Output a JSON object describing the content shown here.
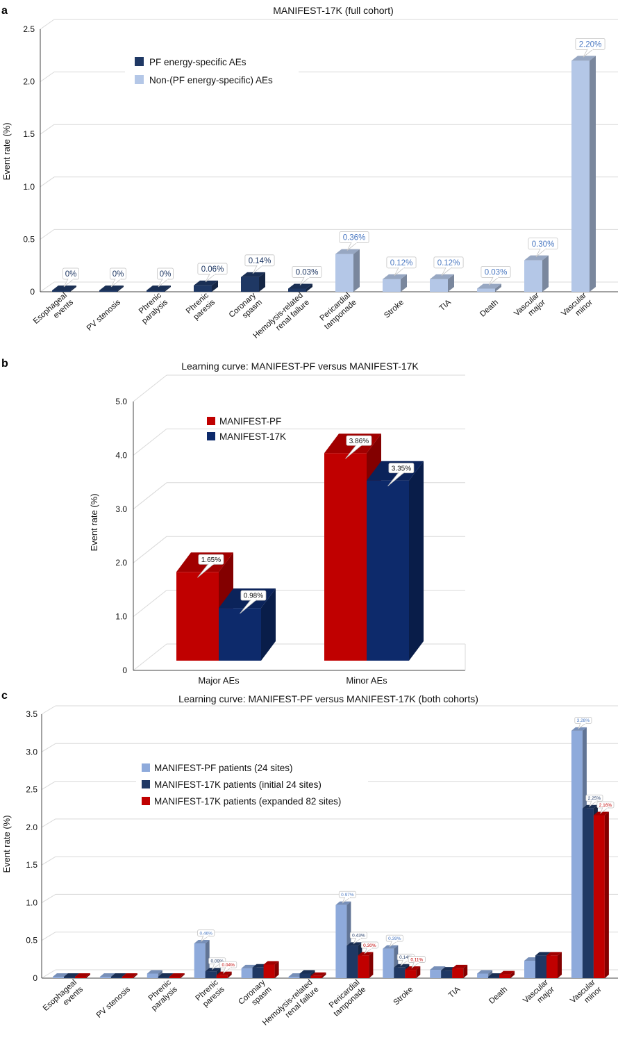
{
  "chart_data": [
    {
      "panel": "a",
      "type": "bar",
      "title": "MANIFEST-17K (full cohort)",
      "ylabel": "Event rate (%)",
      "ylim": [
        0,
        2.5
      ],
      "yticks": [
        "0",
        "0.5",
        "1.0",
        "1.5",
        "2.0",
        "2.5"
      ],
      "categories": [
        [
          "Esophageal",
          "events"
        ],
        [
          "PV stenosis"
        ],
        [
          "Phrenic",
          "paralysis"
        ],
        [
          "Phrenic",
          "paresis"
        ],
        [
          "Coronary",
          "spasm"
        ],
        [
          "Hemolysis-related",
          "renal failure"
        ],
        [
          "Pericardial",
          "tamponade"
        ],
        [
          "Stroke"
        ],
        [
          "TIA"
        ],
        [
          "Death"
        ],
        [
          "Vascular",
          "major"
        ],
        [
          "Vascular",
          "minor"
        ]
      ],
      "values": [
        0,
        0,
        0,
        0.06,
        0.14,
        0.03,
        0.36,
        0.12,
        0.12,
        0.03,
        0.3,
        2.2
      ],
      "labels": [
        "0%",
        "0%",
        "0%",
        "0.06%",
        "0.14%",
        "0.03%",
        "0.36%",
        "0.12%",
        "0.12%",
        "0.03%",
        "0.30%",
        "2.20%"
      ],
      "groups": [
        0,
        0,
        0,
        0,
        0,
        0,
        1,
        1,
        1,
        1,
        1,
        1
      ],
      "legend": [
        "PF energy-specific AEs",
        "Non-(PF energy-specific) AEs"
      ],
      "colors": [
        "#1f3864",
        "#b4c7e7"
      ],
      "label_colors": [
        "#1f3864",
        "#4a78c2"
      ],
      "legend_position": "top-left"
    },
    {
      "panel": "b",
      "type": "bar",
      "title": "Learning curve: MANIFEST-PF versus MANIFEST-17K",
      "ylabel": "Event rate (%)",
      "ylim": [
        0,
        5.0
      ],
      "yticks": [
        "0",
        "1.0",
        "2.0",
        "3.0",
        "4.0",
        "5.0"
      ],
      "categories": [
        "Major AEs",
        "Minor AEs"
      ],
      "series": [
        {
          "name": "MANIFEST-PF",
          "values": [
            1.65,
            3.86
          ],
          "labels": [
            "1.65%",
            "3.86%"
          ]
        },
        {
          "name": "MANIFEST-17K",
          "values": [
            0.98,
            3.35
          ],
          "labels": [
            "0.98%",
            "3.35%"
          ]
        }
      ],
      "colors": [
        "#c00000",
        "#0d2a6b"
      ],
      "legend_position": "top-left"
    },
    {
      "panel": "c",
      "type": "bar",
      "title": "Learning curve: MANIFEST-PF versus MANIFEST-17K (both cohorts)",
      "ylabel": "Event rate (%)",
      "ylim": [
        0,
        3.5
      ],
      "yticks": [
        "0",
        "0.5",
        "1.0",
        "1.5",
        "2.0",
        "2.5",
        "3.0",
        "3.5"
      ],
      "categories": [
        [
          "Esophageal",
          "events"
        ],
        [
          "PV stenosis"
        ],
        [
          "Phrenic",
          "paralysis"
        ],
        [
          "Phrenic",
          "paresis"
        ],
        [
          "Coronary",
          "spasm"
        ],
        [
          "Hemolysis-related",
          "renal failure"
        ],
        [
          "Pericardial",
          "tamponade"
        ],
        [
          "Stroke"
        ],
        [
          "TIA"
        ],
        [
          "Death"
        ],
        [
          "Vascular",
          "major"
        ],
        [
          "Vascular",
          "minor"
        ]
      ],
      "series": [
        {
          "name": "MANIFEST-PF patients (24 sites)",
          "values": [
            0,
            0,
            0.06,
            0.46,
            0.13,
            0,
            0.97,
            0.39,
            0.11,
            0.06,
            0.23,
            3.28
          ]
        },
        {
          "name": "MANIFEST-17K patients (initial 24 sites)",
          "values": [
            0,
            0,
            0.01,
            0.09,
            0.14,
            0.06,
            0.43,
            0.14,
            0.1,
            0.01,
            0.3,
            2.25
          ]
        },
        {
          "name": "MANIFEST-17K patients (expanded 82 sites)",
          "values": [
            0,
            0,
            0.01,
            0.04,
            0.18,
            0.03,
            0.3,
            0.11,
            0.13,
            0.05,
            0.3,
            2.16
          ]
        }
      ],
      "data_labels": [
        {
          "series": 0,
          "category": 3,
          "text": "0.46%"
        },
        {
          "series": 1,
          "category": 3,
          "text": "0.09%"
        },
        {
          "series": 2,
          "category": 3,
          "text": "0.04%"
        },
        {
          "series": 0,
          "category": 6,
          "text": "0.97%"
        },
        {
          "series": 1,
          "category": 6,
          "text": "0.43%"
        },
        {
          "series": 2,
          "category": 6,
          "text": "0.30%"
        },
        {
          "series": 0,
          "category": 7,
          "text": "0.39%"
        },
        {
          "series": 1,
          "category": 7,
          "text": "0.14%"
        },
        {
          "series": 2,
          "category": 7,
          "text": "0.11%"
        },
        {
          "series": 0,
          "category": 11,
          "text": "3.28%"
        },
        {
          "series": 1,
          "category": 11,
          "text": "2.25%"
        },
        {
          "series": 2,
          "category": 11,
          "text": "2.16%"
        }
      ],
      "colors": [
        "#8eaadb",
        "#1f3864",
        "#c00000"
      ],
      "label_colors": [
        "#4a78c2",
        "#1f3864",
        "#c00000"
      ],
      "legend_position": "top-left"
    }
  ]
}
